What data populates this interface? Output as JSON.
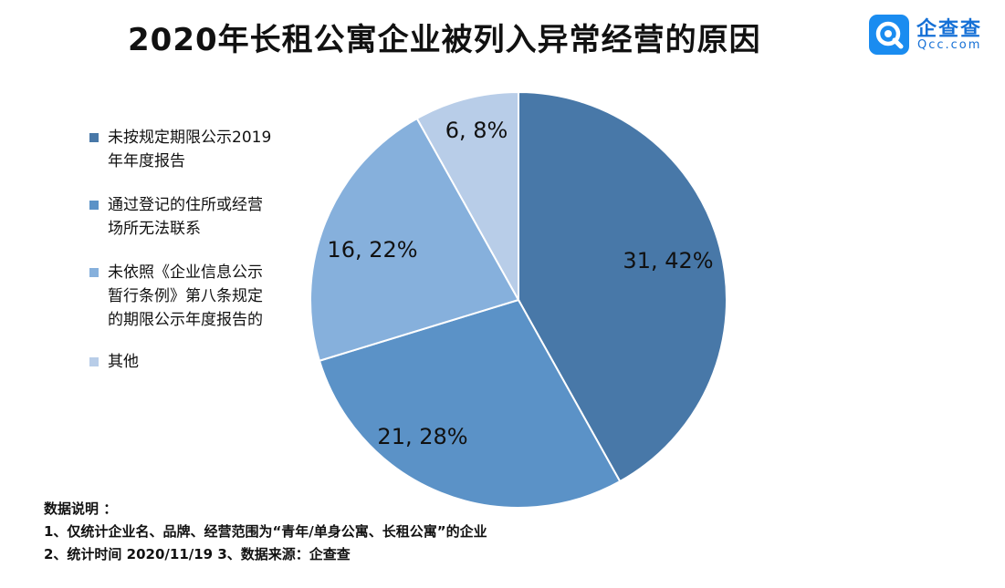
{
  "title": "2020年长租公寓企业被列入异常经营的原因",
  "logo": {
    "name": "企查查",
    "domain": "Qcc.com",
    "brand_color": "#1a8cf0"
  },
  "chart_data": {
    "type": "pie",
    "start_angle_deg": 0,
    "direction": "clockwise",
    "slices": [
      {
        "name": "未按规定期限公示2019\n年年度报告",
        "value": 31,
        "percent": "42%",
        "label": "31, 42%",
        "color": "#4878a8"
      },
      {
        "name": "通过登记的住所或经营\n场所无法联系",
        "value": 21,
        "percent": "28%",
        "label": "21, 28%",
        "color": "#5b92c7"
      },
      {
        "name": "未依照《企业信息公示\n暂行条例》第八条规定\n的期限公示年度报告的",
        "value": 16,
        "percent": "22%",
        "label": "16, 22%",
        "color": "#86b0dc"
      },
      {
        "name": "其他",
        "value": 6,
        "percent": "8%",
        "label": "6, 8%",
        "color": "#b8cde8"
      }
    ],
    "legend_position": "left"
  },
  "notes": {
    "heading": "数据说明 ：",
    "line1": "1、仅统计企业名、品牌、经营范围为“青年/单身公寓、长租公寓”的企业",
    "line2": "2、统计时间 2020/11/19    3、数据来源：企查查"
  }
}
